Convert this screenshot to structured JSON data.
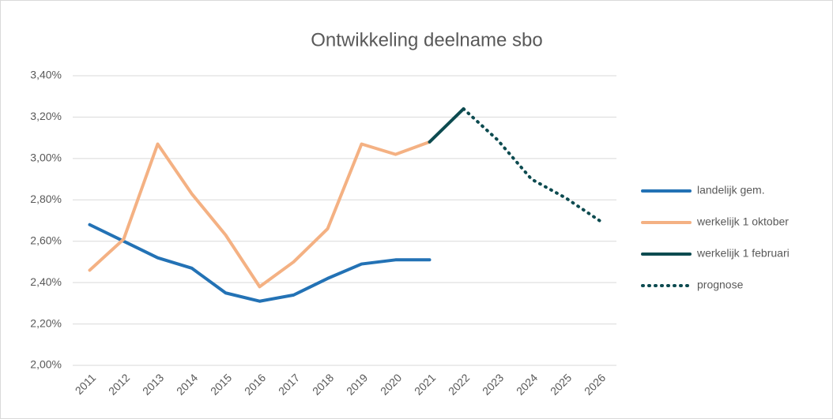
{
  "chart_data": {
    "type": "line",
    "title": "Ontwikkeling deelname sbo",
    "categories": [
      "2011",
      "2012",
      "2013",
      "2014",
      "2015",
      "2016",
      "2017",
      "2018",
      "2019",
      "2020",
      "2021",
      "2022",
      "2023",
      "2024",
      "2025",
      "2026"
    ],
    "series": [
      {
        "name": "landelijk gem.",
        "color": "#2372b5",
        "style": "solid",
        "values": [
          2.68,
          2.6,
          2.52,
          2.47,
          2.35,
          2.31,
          2.34,
          2.42,
          2.49,
          2.51,
          2.51,
          null,
          null,
          null,
          null,
          null
        ]
      },
      {
        "name": "werkelijk 1 oktober",
        "color": "#f4b183",
        "style": "solid",
        "values": [
          2.46,
          2.61,
          3.07,
          2.83,
          2.63,
          2.38,
          2.5,
          2.66,
          3.07,
          3.02,
          3.08,
          null,
          null,
          null,
          null,
          null
        ]
      },
      {
        "name": "werkelijk 1 februari",
        "color": "#0d4b50",
        "style": "solid",
        "values": [
          null,
          null,
          null,
          null,
          null,
          null,
          null,
          null,
          null,
          null,
          3.08,
          3.24,
          null,
          null,
          null,
          null
        ]
      },
      {
        "name": "prognose",
        "color": "#0d4b50",
        "style": "dotted",
        "values": [
          null,
          null,
          null,
          null,
          null,
          null,
          null,
          null,
          null,
          null,
          null,
          3.24,
          3.09,
          2.9,
          2.81,
          2.7
        ]
      }
    ],
    "ylim": [
      2.0,
      3.4
    ],
    "yticks": [
      {
        "value": 2.0,
        "label": "2,00%"
      },
      {
        "value": 2.2,
        "label": "2,20%"
      },
      {
        "value": 2.4,
        "label": "2,40%"
      },
      {
        "value": 2.6,
        "label": "2,60%"
      },
      {
        "value": 2.8,
        "label": "2,80%"
      },
      {
        "value": 3.0,
        "label": "3,00%"
      },
      {
        "value": 3.2,
        "label": "3,20%"
      },
      {
        "value": 3.4,
        "label": "3,40%"
      }
    ],
    "grid": true,
    "legend": "right"
  }
}
